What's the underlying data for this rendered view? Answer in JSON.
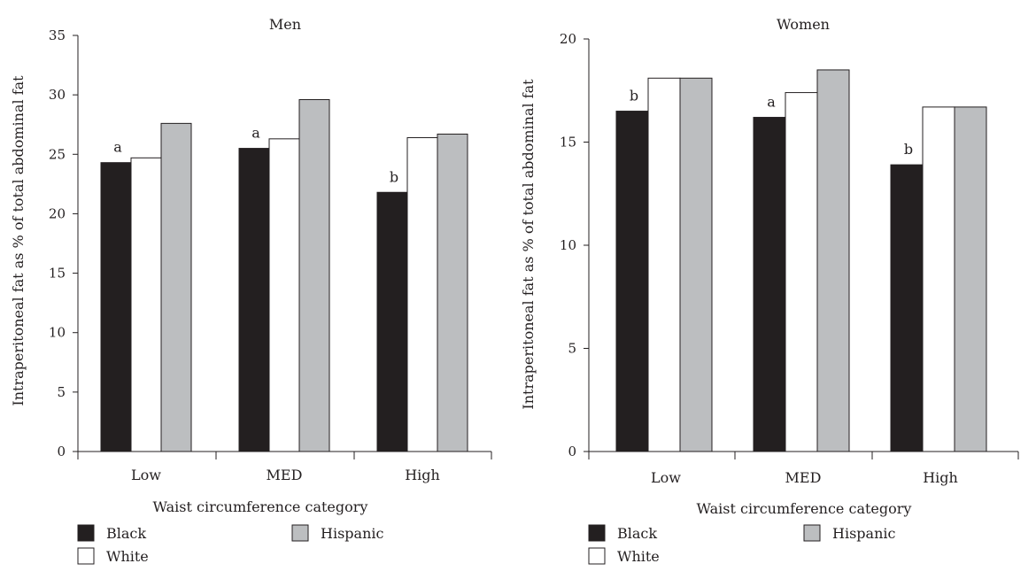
{
  "chart_data": [
    {
      "type": "bar",
      "title": "Men",
      "xlabel": "Waist circumference category",
      "ylabel": "Intraperitoneal fat as % of total abdominal fat",
      "ylim": [
        0,
        35
      ],
      "yticks": [
        "0",
        "5",
        "10",
        "15",
        "20",
        "25",
        "30",
        "35"
      ],
      "categories": [
        "Low",
        "MED",
        "High"
      ],
      "series": [
        {
          "name": "Black",
          "color": "#231f20",
          "values": [
            24.3,
            25.5,
            21.8
          ]
        },
        {
          "name": "White",
          "color": "#ffffff",
          "values": [
            24.7,
            26.3,
            26.4
          ]
        },
        {
          "name": "Hispanic",
          "color": "#bcbec0",
          "values": [
            27.6,
            29.6,
            26.7
          ]
        }
      ],
      "annotations": [
        "a",
        "a",
        "b"
      ]
    },
    {
      "type": "bar",
      "title": "Women",
      "xlabel": "Waist circumference category",
      "ylabel": "Intraperitoneal fat as % of total abdominal fat",
      "ylim": [
        0,
        20
      ],
      "yticks": [
        "0",
        "5",
        "10",
        "15",
        "20"
      ],
      "categories": [
        "Low",
        "MED",
        "High"
      ],
      "series": [
        {
          "name": "Black",
          "color": "#231f20",
          "values": [
            16.5,
            16.2,
            13.9
          ]
        },
        {
          "name": "White",
          "color": "#ffffff",
          "values": [
            18.1,
            17.4,
            16.7
          ]
        },
        {
          "name": "Hispanic",
          "color": "#bcbec0",
          "values": [
            18.1,
            18.5,
            16.7
          ]
        }
      ],
      "annotations": [
        "b",
        "a",
        "b"
      ]
    }
  ]
}
